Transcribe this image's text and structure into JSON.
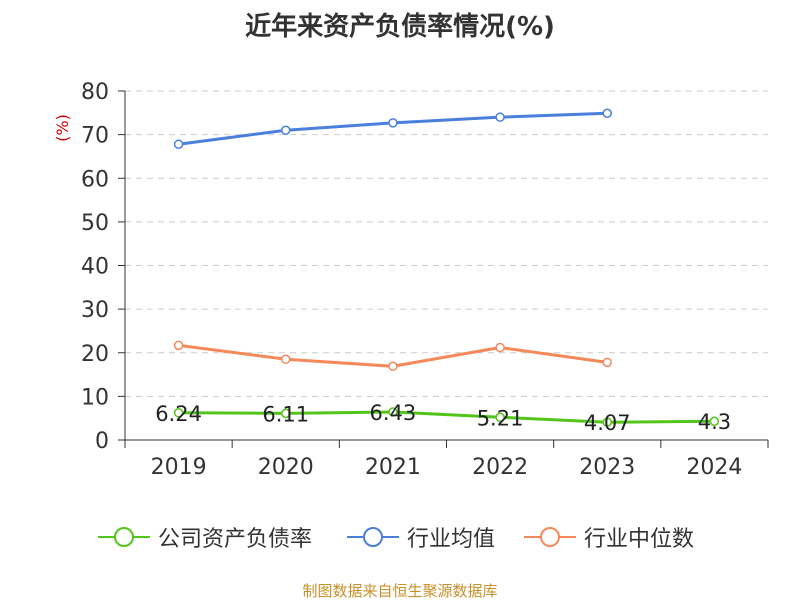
{
  "chart_data": {
    "type": "line",
    "title": "近年来资产负债率情况(%)",
    "ylabel": "(%)",
    "xlabel": "",
    "categories": [
      "2019",
      "2020",
      "2021",
      "2022",
      "2023",
      "2024"
    ],
    "ylim": [
      0,
      80
    ],
    "yticks": [
      0,
      10,
      20,
      30,
      40,
      50,
      60,
      70,
      80
    ],
    "grid": true,
    "legend_position": "bottom",
    "series": [
      {
        "name": "公司资产负债率",
        "color": "#52c41a",
        "values": [
          6.24,
          6.11,
          6.43,
          5.21,
          4.07,
          4.3
        ],
        "data_labels": [
          "6.24",
          "6.11",
          "6.43",
          "5.21",
          "4.07",
          "4.3"
        ]
      },
      {
        "name": "行业均值",
        "color": "#4a7fdc",
        "values": [
          67.8,
          71.0,
          72.7,
          74.0,
          74.9,
          null
        ]
      },
      {
        "name": "行业中位数",
        "color": "#f5895a",
        "values": [
          21.7,
          18.5,
          16.9,
          21.2,
          17.8,
          null
        ]
      }
    ]
  },
  "source_note": "制图数据来自恒生聚源数据库"
}
